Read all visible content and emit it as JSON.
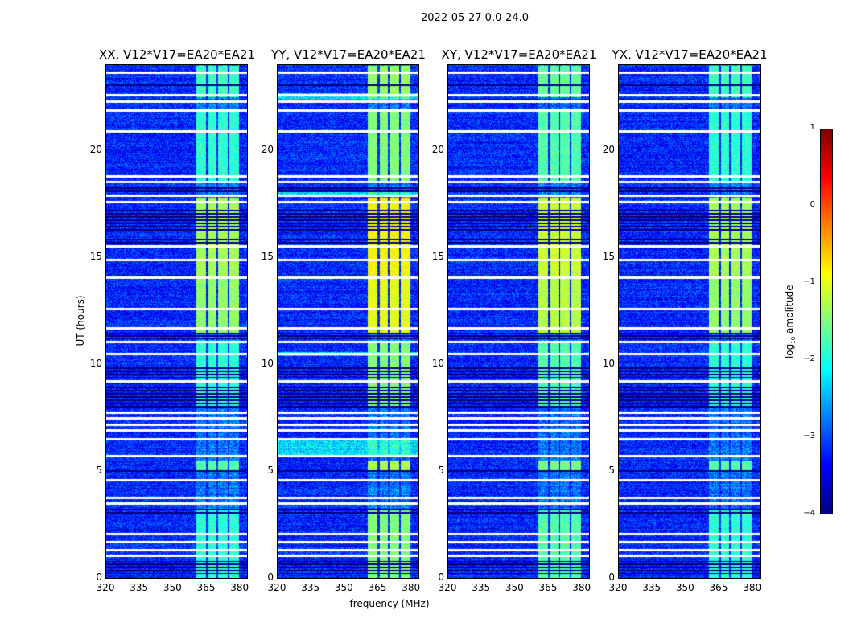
{
  "chart_data": {
    "type": "heatmap",
    "title": "2022-05-27 0.0-24.0",
    "xlabel": "frequency (MHz)",
    "ylabel": "UT (hours)",
    "xlim": [
      320,
      383
    ],
    "ylim": [
      0,
      24
    ],
    "xticks": [
      320,
      335,
      350,
      365,
      380
    ],
    "yticks": [
      0,
      5,
      10,
      15,
      20
    ],
    "colorbar": {
      "label": "log10 amplitude",
      "label_main": "log",
      "label_sub": "10",
      "label_rest": " amplitude",
      "ticks": [
        1,
        0,
        -1,
        -2,
        -3,
        -4
      ],
      "tick_labels": [
        "1",
        "0",
        "−1",
        "−2",
        "−3",
        "−4"
      ],
      "clim": [
        -4,
        1
      ],
      "colormap": "jet"
    },
    "baseline_log_amplitude": -3.2,
    "rfi_channels_mhz": [
      [
        360,
        364.6
      ],
      [
        365.4,
        369.3
      ],
      [
        370,
        374.3
      ],
      [
        375,
        379.3
      ]
    ],
    "rfi_active_hours": [
      [
        0,
        3.2,
        -1.9
      ],
      [
        5,
        5.5,
        -1.7
      ],
      [
        8,
        11,
        -1.9
      ],
      [
        11.5,
        14,
        -1.4
      ],
      [
        14,
        17.8,
        -1.3
      ],
      [
        18.5,
        22,
        -1.9
      ],
      [
        22.5,
        24,
        -1.8
      ]
    ],
    "flagged_white_hours": [
      23.66,
      22.6,
      22.3,
      21.9,
      20.9,
      18.8,
      18.55,
      17.9,
      17.6,
      15.55,
      14.9,
      14.06,
      12.6,
      11.7,
      11.06,
      10.5,
      9.2,
      7.76,
      7.5,
      7.2,
      6.94,
      6.5,
      5.7,
      4.6,
      3.75,
      3.5,
      2.06,
      1.7,
      1.3,
      1.05
    ],
    "dark_hours": [
      [
        23.0,
        23.2
      ],
      [
        18.0,
        18.3
      ],
      [
        16.2,
        17.3
      ],
      [
        15.6,
        15.9
      ],
      [
        11.2,
        11.5
      ],
      [
        9.4,
        9.9
      ],
      [
        8.0,
        9.0
      ],
      [
        6.7,
        6.8
      ],
      [
        5.0,
        5.1
      ],
      [
        3.0,
        3.3
      ],
      [
        0.2,
        0.8
      ]
    ],
    "panels": [
      {
        "title": "XX, V12*V17=EA20*EA21",
        "gain": 1.0,
        "broadband_hours": []
      },
      {
        "title": "YY, V12*V17=EA20*EA21",
        "gain": 1.35,
        "broadband_hours": [
          [
            5.7,
            6.5
          ],
          [
            10.4,
            10.6
          ],
          [
            17.9,
            18.1
          ],
          [
            22.4,
            22.7
          ]
        ]
      },
      {
        "title": "XY, V12*V17=EA20*EA21",
        "gain": 1.15,
        "broadband_hours": []
      },
      {
        "title": "YX, V12*V17=EA20*EA21",
        "gain": 1.0,
        "broadband_hours": []
      }
    ]
  }
}
